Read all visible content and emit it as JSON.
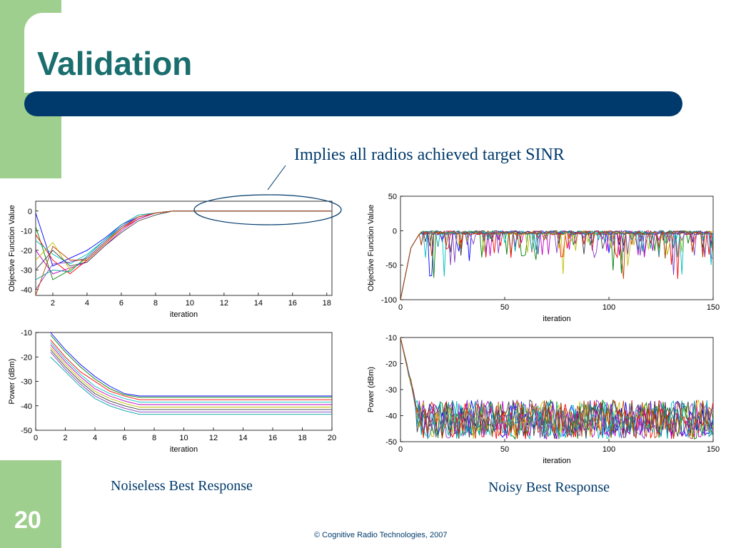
{
  "slide": {
    "title": "Validation",
    "callout": "Implies all radios achieved target SINR",
    "caption_left": "Noiseless Best Response",
    "caption_right": "Noisy Best Response",
    "slide_number": "20",
    "footer": "© Cognitive Radio Technologies, 2007"
  },
  "colors": {
    "accent_bar": "#003a6c",
    "title": "#1a6e6e",
    "side_green": "#9fcf8e"
  },
  "chart_data": [
    {
      "type": "line",
      "xlabel": "iteration",
      "ylabel": "Objective Function Value",
      "xlim": [
        1,
        18.3
      ],
      "ylim": [
        -43,
        5
      ],
      "xticks": [
        2,
        4,
        6,
        8,
        10,
        12,
        14,
        16,
        18
      ],
      "yticks": [
        0,
        -10,
        -20,
        -30,
        -40
      ],
      "series": [
        {
          "values": [
            [
              1,
              -1
            ],
            [
              2,
              -28
            ],
            [
              3,
              -24
            ],
            [
              4,
              -20
            ],
            [
              5,
              -14
            ],
            [
              6,
              -7
            ],
            [
              7,
              -3
            ],
            [
              8,
              -1
            ],
            [
              9,
              0
            ],
            [
              18.3,
              0
            ]
          ]
        },
        {
          "values": [
            [
              1,
              -8
            ],
            [
              2,
              -35
            ],
            [
              3,
              -30
            ],
            [
              4,
              -24
            ],
            [
              5,
              -16
            ],
            [
              6,
              -8
            ],
            [
              7,
              -3
            ],
            [
              8,
              -1
            ],
            [
              9,
              0
            ],
            [
              18.3,
              0
            ]
          ]
        },
        {
          "values": [
            [
              1,
              -12
            ],
            [
              2,
              -25
            ],
            [
              3,
              -32
            ],
            [
              4,
              -25
            ],
            [
              5,
              -17
            ],
            [
              6,
              -9
            ],
            [
              7,
              -4
            ],
            [
              8,
              -1
            ],
            [
              9,
              0
            ],
            [
              18.3,
              0
            ]
          ]
        },
        {
          "values": [
            [
              1,
              -15
            ],
            [
              2,
              -22
            ],
            [
              3,
              -27
            ],
            [
              4,
              -22
            ],
            [
              5,
              -15
            ],
            [
              6,
              -8
            ],
            [
              7,
              -3
            ],
            [
              8,
              -1
            ],
            [
              9,
              0
            ],
            [
              18.3,
              0
            ]
          ]
        },
        {
          "values": [
            [
              1,
              -20
            ],
            [
              2,
              -32
            ],
            [
              3,
              -29
            ],
            [
              4,
              -26
            ],
            [
              5,
              -18
            ],
            [
              6,
              -10
            ],
            [
              7,
              -4
            ],
            [
              8,
              -1
            ],
            [
              9,
              0
            ],
            [
              18.3,
              0
            ]
          ]
        },
        {
          "values": [
            [
              1,
              -25
            ],
            [
              2,
              -16
            ],
            [
              3,
              -30
            ],
            [
              4,
              -24
            ],
            [
              5,
              -16
            ],
            [
              6,
              -9
            ],
            [
              7,
              -3
            ],
            [
              8,
              -1
            ],
            [
              9,
              0
            ],
            [
              18.3,
              0
            ]
          ]
        },
        {
          "values": [
            [
              1,
              -30
            ],
            [
              2,
              -20
            ],
            [
              3,
              -28
            ],
            [
              4,
              -26
            ],
            [
              5,
              -18
            ],
            [
              6,
              -11
            ],
            [
              7,
              -5
            ],
            [
              8,
              -2
            ],
            [
              9,
              0
            ],
            [
              18.3,
              0
            ]
          ]
        },
        {
          "values": [
            [
              1,
              -40
            ],
            [
              2,
              -27
            ],
            [
              3,
              -26
            ],
            [
              4,
              -24
            ],
            [
              5,
              -16
            ],
            [
              6,
              -8
            ],
            [
              7,
              -3
            ],
            [
              8,
              -1
            ],
            [
              9,
              0
            ],
            [
              18.3,
              0
            ]
          ]
        },
        {
          "values": [
            [
              1,
              -35
            ],
            [
              2,
              -30
            ],
            [
              3,
              -31
            ],
            [
              4,
              -23
            ],
            [
              5,
              -15
            ],
            [
              6,
              -7
            ],
            [
              7,
              -2
            ],
            [
              8,
              -1
            ],
            [
              9,
              0
            ],
            [
              18.3,
              0
            ]
          ]
        },
        {
          "values": [
            [
              1,
              -43
            ],
            [
              2,
              -18
            ],
            [
              3,
              -25
            ],
            [
              4,
              -25
            ],
            [
              5,
              -17
            ],
            [
              6,
              -9
            ],
            [
              7,
              -3
            ],
            [
              8,
              -1
            ],
            [
              9,
              0
            ],
            [
              18.3,
              0
            ]
          ]
        }
      ]
    },
    {
      "type": "line",
      "xlabel": "iteration",
      "ylabel": "Power (dBm)",
      "xlim": [
        0,
        20
      ],
      "ylim": [
        -50,
        -10
      ],
      "xticks": [
        0,
        2,
        4,
        6,
        8,
        10,
        12,
        14,
        16,
        18,
        20
      ],
      "yticks": [
        -10,
        -20,
        -30,
        -40,
        -50
      ],
      "series": [
        {
          "values": [
            [
              1,
              -10
            ],
            [
              2,
              -17
            ],
            [
              3,
              -23
            ],
            [
              4,
              -28
            ],
            [
              5,
              -32
            ],
            [
              6,
              -35
            ],
            [
              7,
              -36
            ],
            [
              8,
              -36
            ],
            [
              20,
              -36
            ]
          ]
        },
        {
          "values": [
            [
              1,
              -11
            ],
            [
              2,
              -18
            ],
            [
              3,
              -24
            ],
            [
              4,
              -29
            ],
            [
              5,
              -33
            ],
            [
              6,
              -35.5
            ],
            [
              7,
              -36.5
            ],
            [
              8,
              -36.5
            ],
            [
              20,
              -36.5
            ]
          ]
        },
        {
          "values": [
            [
              1,
              -13
            ],
            [
              2,
              -20
            ],
            [
              3,
              -26
            ],
            [
              4,
              -30
            ],
            [
              5,
              -34
            ],
            [
              6,
              -36
            ],
            [
              7,
              -37.5
            ],
            [
              8,
              -37.5
            ],
            [
              20,
              -37.5
            ]
          ]
        },
        {
          "values": [
            [
              1,
              -14
            ],
            [
              2,
              -21
            ],
            [
              3,
              -27
            ],
            [
              4,
              -32
            ],
            [
              5,
              -35
            ],
            [
              6,
              -37
            ],
            [
              7,
              -38.5
            ],
            [
              8,
              -38.5
            ],
            [
              20,
              -38.5
            ]
          ]
        },
        {
          "values": [
            [
              1,
              -15
            ],
            [
              2,
              -22
            ],
            [
              3,
              -28
            ],
            [
              4,
              -33
            ],
            [
              5,
              -36
            ],
            [
              6,
              -38
            ],
            [
              7,
              -39.5
            ],
            [
              8,
              -39.5
            ],
            [
              20,
              -39.5
            ]
          ]
        },
        {
          "values": [
            [
              1,
              -16
            ],
            [
              2,
              -23
            ],
            [
              3,
              -29
            ],
            [
              4,
              -34
            ],
            [
              5,
              -37
            ],
            [
              6,
              -39
            ],
            [
              7,
              -40.5
            ],
            [
              8,
              -40.5
            ],
            [
              20,
              -40.5
            ]
          ]
        },
        {
          "values": [
            [
              1,
              -17
            ],
            [
              2,
              -24
            ],
            [
              3,
              -30
            ],
            [
              4,
              -35
            ],
            [
              5,
              -38
            ],
            [
              6,
              -40
            ],
            [
              7,
              -41.5
            ],
            [
              8,
              -41.5
            ],
            [
              20,
              -41.5
            ]
          ]
        },
        {
          "values": [
            [
              1,
              -18
            ],
            [
              2,
              -25
            ],
            [
              3,
              -31
            ],
            [
              4,
              -36
            ],
            [
              5,
              -39
            ],
            [
              6,
              -41
            ],
            [
              7,
              -42.5
            ],
            [
              8,
              -42.5
            ],
            [
              20,
              -42.5
            ]
          ]
        },
        {
          "values": [
            [
              1,
              -20
            ],
            [
              2,
              -26
            ],
            [
              3,
              -32
            ],
            [
              4,
              -37
            ],
            [
              5,
              -40
            ],
            [
              6,
              -42
            ],
            [
              7,
              -43.5
            ],
            [
              8,
              -43.5
            ],
            [
              20,
              -43.5
            ]
          ]
        }
      ]
    },
    {
      "type": "line",
      "xlabel": "iteration",
      "ylabel": "Objective Function Value",
      "xlim": [
        0,
        150
      ],
      "ylim": [
        -100,
        50
      ],
      "xticks": [
        0,
        50,
        100,
        150
      ],
      "yticks": [
        50,
        0,
        -50,
        -100
      ],
      "num_series": 10,
      "start_value": -100,
      "settled_value": 0,
      "dip_range": [
        -75,
        0
      ]
    },
    {
      "type": "line",
      "xlabel": "iteration",
      "ylabel": "Power (dBm)",
      "xlim": [
        0,
        150
      ],
      "ylim": [
        -50,
        -10
      ],
      "xticks": [
        0,
        50,
        100,
        150
      ],
      "yticks": [
        -10,
        -20,
        -30,
        -40,
        -50
      ],
      "num_series": 10,
      "start_value": -10,
      "settled_range": [
        -49,
        -34
      ]
    }
  ]
}
